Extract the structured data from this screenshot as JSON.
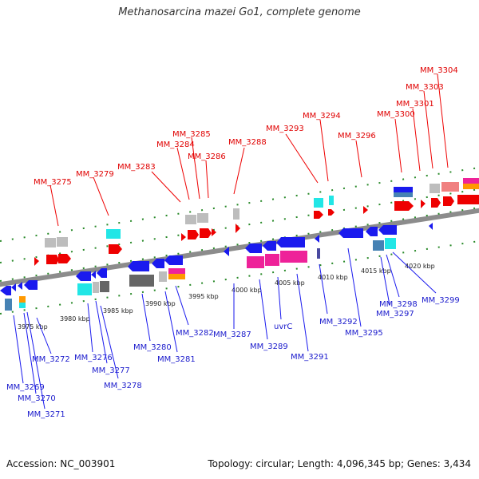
{
  "title": "Methanosarcina mazei Go1, complete genome",
  "footer": {
    "accession": "Accession: NC_003901",
    "summary": "Topology: circular; Length: 4,096,345 bp; Genes: 3,434"
  },
  "scale_labels": [
    "3975 kbp",
    "3980 kbp",
    "3985 kbp",
    "3990 kbp",
    "3995 kbp",
    "4000 kbp",
    "4005 kbp",
    "4010 kbp",
    "4015 kbp",
    "4020 kbp"
  ],
  "forward_gene_labels": [
    "MM_3275",
    "MM_3279",
    "MM_3283",
    "MM_3284",
    "MM_3285",
    "MM_3286",
    "MM_3288",
    "MM_3293",
    "MM_3294",
    "MM_3296",
    "MM_3300",
    "MM_3301",
    "MM_3303",
    "MM_3304"
  ],
  "reverse_gene_labels": [
    "MM_3269",
    "MM_3270",
    "MM_3271",
    "MM_3272",
    "MM_3276",
    "MM_3277",
    "MM_3278",
    "MM_3280",
    "MM_3281",
    "MM_3282",
    "MM_3287",
    "MM_3289",
    "uvrC",
    "MM_3291",
    "MM_3292",
    "MM_3295",
    "MM_3297",
    "MM_3298",
    "MM_3299"
  ],
  "colors": {
    "forward_gene": "#ee0000",
    "reverse_gene": "#1a1aee",
    "forward_label": "#e00000",
    "reverse_label": "#1a1acc",
    "backbone": "#8c8c8c",
    "tick": "#2a8a2a",
    "cog_gray": "#bdbdbd",
    "cog_dark": "#666666",
    "cog_cyan": "#22e6e6",
    "cog_pink": "#ee2299",
    "cog_salmon": "#f08080",
    "cog_orange": "#ff9900",
    "cog_steel": "#4682b4"
  }
}
